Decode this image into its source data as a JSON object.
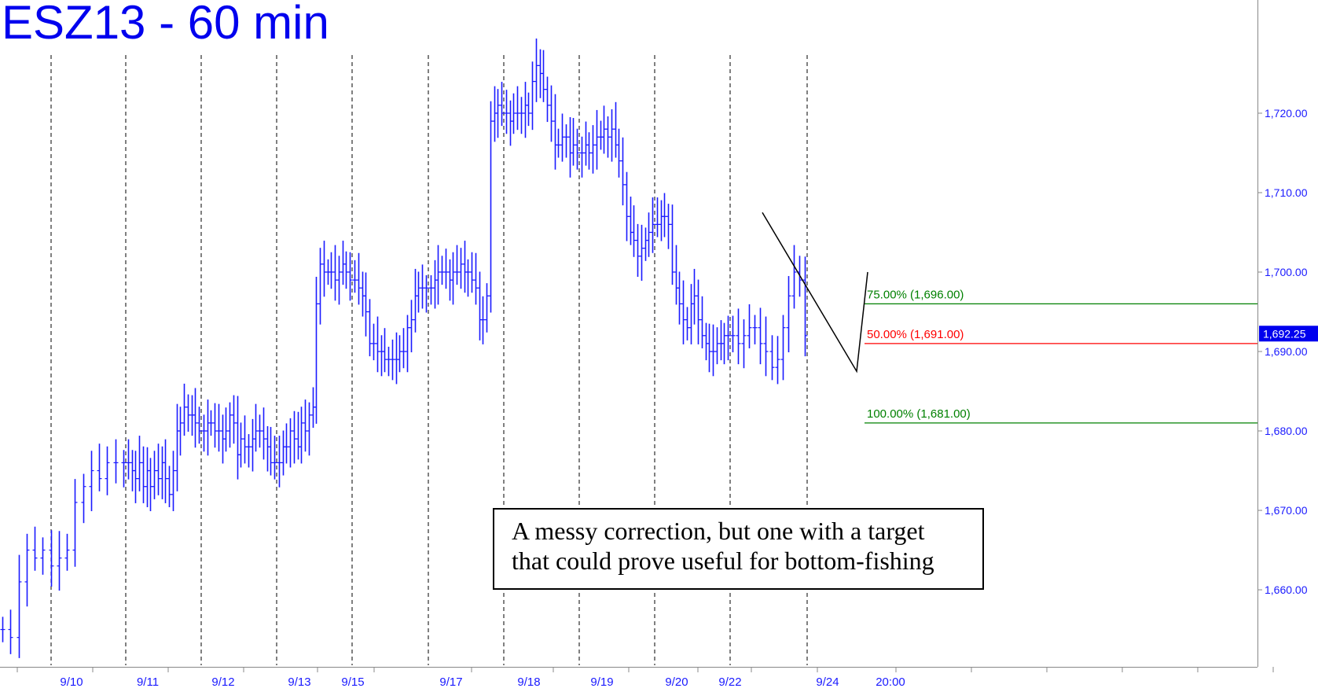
{
  "chart_data": {
    "type": "ohlc",
    "title": "ESZ13 - 60 min",
    "ylim": [
      1650.5,
      1729.5
    ],
    "y_ticks": [
      1660,
      1670,
      1680,
      1690,
      1700,
      1710,
      1720
    ],
    "y_tick_labels": [
      "1,660.00",
      "1,670.00",
      "1,680.00",
      "1,690.00",
      "1,700.00",
      "1,710.00",
      "1,720.00"
    ],
    "x_labels": [
      "9/10",
      "9/11",
      "9/12",
      "9/13",
      "9/15",
      "9/17",
      "9/18",
      "9/19",
      "9/20",
      "9/22",
      "9/24",
      "20:00"
    ],
    "last_price": 1692.25,
    "last_price_label": "1,692.25",
    "colors": {
      "bars": "#1a1aff",
      "fib_green": "#008000",
      "fib_red": "#ff0000",
      "trend": "#000000",
      "grid": "#000000"
    },
    "fib_levels": [
      {
        "label": "75.00% (1,696.00)",
        "value": 1696.0,
        "color": "#008000"
      },
      {
        "label": "50.00% (1,691.00)",
        "value": 1691.0,
        "color": "#ff0000"
      },
      {
        "label": "100.00% (1,681.00)",
        "value": 1681.0,
        "color": "#008000"
      }
    ],
    "trend_points": [
      1707.5,
      1687.5,
      1700.0
    ],
    "segments": [
      {
        "day": "9/10",
        "bars": 16,
        "points": [
          1655,
          1654,
          1661,
          1665,
          1664,
          1665,
          1663,
          1664,
          1665,
          1671,
          1673,
          1675,
          1674,
          1676,
          1676,
          1676
        ]
      },
      {
        "day": "9/11",
        "bars": 20,
        "points": [
          1676,
          1675,
          1674,
          1676,
          1673,
          1675,
          1673,
          1675,
          1674,
          1676,
          1674,
          1672,
          1675,
          1680,
          1681,
          1683,
          1682,
          1682,
          1681,
          1680
        ]
      },
      {
        "day": "9/12",
        "bars": 20,
        "points": [
          1680,
          1681,
          1681,
          1680,
          1680,
          1679,
          1680,
          1682,
          1681,
          1677,
          1679,
          1678,
          1678,
          1679,
          1680,
          1680,
          1679,
          1678,
          1676,
          1676
        ]
      },
      {
        "day": "9/13",
        "bars": 20,
        "points": [
          1676,
          1678,
          1678,
          1680,
          1679,
          1678,
          1681,
          1680,
          1682,
          1683,
          1696,
          1701,
          1700,
          1700,
          1700,
          1699,
          1700,
          1701,
          1700,
          1699
        ]
      },
      {
        "day": "9/15",
        "bars": 20,
        "points": [
          1699,
          1698,
          1697,
          1695,
          1691,
          1691,
          1690,
          1690,
          1689,
          1689,
          1689,
          1689,
          1690,
          1690,
          1693,
          1694,
          1697,
          1698,
          1698,
          1698
        ]
      },
      {
        "day": "9/17",
        "bars": 20,
        "points": [
          1698,
          1699,
          1700,
          1700,
          1700,
          1699,
          1700,
          1700,
          1701,
          1700,
          1700,
          1699,
          1698,
          1694,
          1694,
          1697,
          1719,
          1720,
          1721,
          1720
        ]
      },
      {
        "day": "9/18",
        "bars": 20,
        "points": [
          1720,
          1719,
          1720,
          1720,
          1720,
          1721,
          1720,
          1724,
          1726,
          1725,
          1723,
          1721,
          1719,
          1716,
          1716,
          1717,
          1717,
          1715,
          1716,
          1715
        ]
      },
      {
        "day": "9/19",
        "bars": 20,
        "points": [
          1715,
          1716,
          1715,
          1716,
          1717,
          1717,
          1718,
          1717,
          1718,
          1716,
          1714,
          1711,
          1707,
          1705,
          1704,
          1702,
          1703,
          1704,
          1705,
          1706
        ]
      },
      {
        "day": "9/20",
        "bars": 20,
        "points": [
          1706,
          1707,
          1707,
          1706,
          1700,
          1698,
          1696,
          1694,
          1693,
          1696,
          1697,
          1694,
          1692,
          1691,
          1690,
          1690,
          1691,
          1691,
          1692,
          1692
        ]
      },
      {
        "day": "9/22",
        "bars": 14,
        "points": [
          1692,
          1691,
          1692,
          1693,
          1693,
          1691,
          1690,
          1688,
          1689,
          1693,
          1697,
          1700,
          1699,
          1692
        ]
      }
    ]
  }
}
